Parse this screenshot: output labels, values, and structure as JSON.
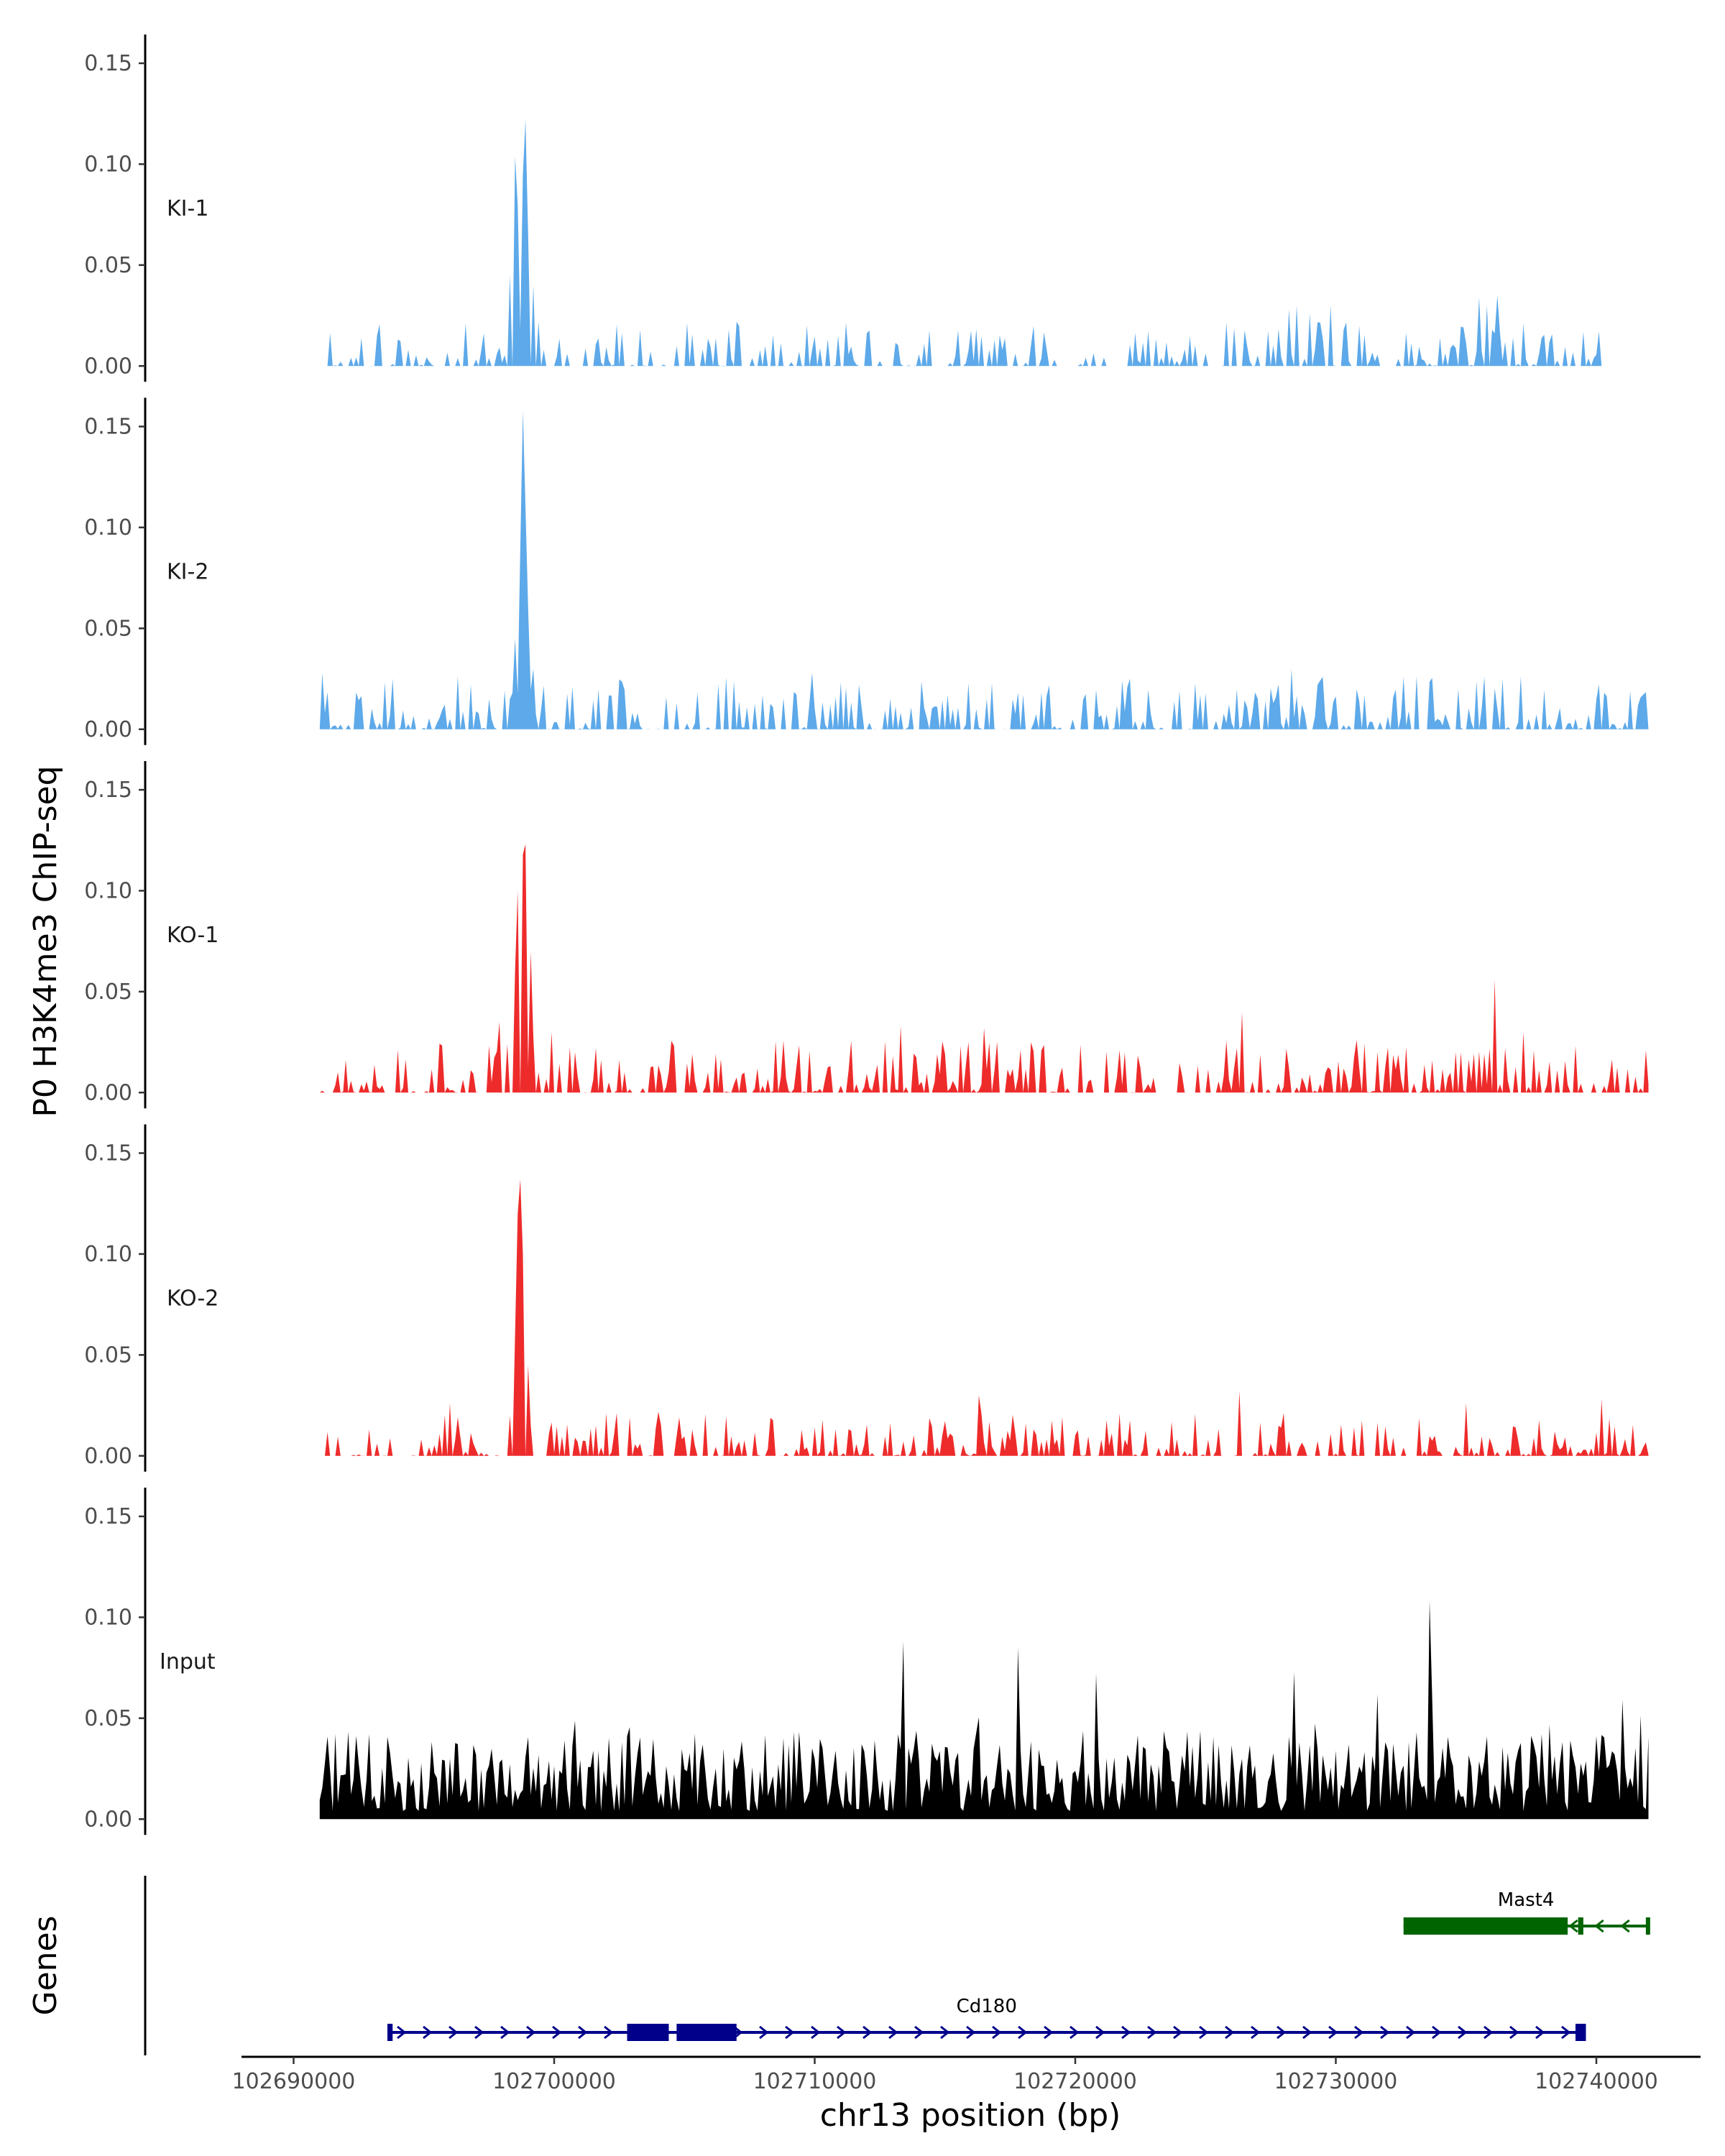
{
  "chart_data": {
    "type": "area",
    "title": "",
    "ylabel": "P0 H3K4me3 ChIP-seq",
    "xlabel": "chr13 position (bp)",
    "chromosome": "chr13",
    "xlim": [
      102688000,
      102744000
    ],
    "ylim": [
      0,
      0.16
    ],
    "y_ticks": [
      0.0,
      0.05,
      0.1,
      0.15
    ],
    "y_tick_labels": [
      "0.00",
      "0.05",
      "0.10",
      "0.15"
    ],
    "x_ticks": [
      102690000,
      102700000,
      102710000,
      102720000,
      102730000,
      102740000
    ],
    "x_tick_labels": [
      "102690000",
      "102700000",
      "102710000",
      "102720000",
      "102730000",
      "102740000"
    ],
    "grid": false,
    "track_range": [
      102691000,
      102742000
    ],
    "tracks": [
      {
        "name": "KI-1",
        "color": "#5DA9E9",
        "sparsity": 0.55,
        "spread": 0.01,
        "seed": 11,
        "region": [
          102691000,
          102740800
        ],
        "peaks": [
          [
            102698200,
            0.0
          ],
          [
            102698300,
            0.045
          ],
          [
            102698450,
            0.104
          ],
          [
            102698600,
            0.08
          ],
          [
            102698750,
            0.095
          ],
          [
            102698880,
            0.122
          ],
          [
            102699000,
            0.065
          ],
          [
            102699150,
            0.04
          ],
          [
            102699350,
            0.022
          ],
          [
            102699600,
            0.008
          ],
          [
            102699750,
            0.0
          ],
          [
            102728200,
            0.028
          ],
          [
            102728500,
            0.03
          ],
          [
            102729000,
            0.026
          ],
          [
            102729800,
            0.03
          ],
          [
            102730900,
            0.02
          ],
          [
            102735300,
            0.0
          ],
          [
            102735500,
            0.034
          ],
          [
            102735750,
            0.03
          ],
          [
            102736000,
            0.018
          ],
          [
            102736200,
            0.035
          ],
          [
            102736500,
            0.012
          ],
          [
            102736700,
            0.0
          ]
        ]
      },
      {
        "name": "KI-2",
        "color": "#5DA9E9",
        "sparsity": 0.42,
        "spread": 0.012,
        "seed": 23,
        "region": [
          102691000,
          102742000
        ],
        "peaks": [
          [
            102698150,
            0.0
          ],
          [
            102698350,
            0.018
          ],
          [
            102698500,
            0.045
          ],
          [
            102698650,
            0.09
          ],
          [
            102698750,
            0.158
          ],
          [
            102698850,
            0.11
          ],
          [
            102699000,
            0.06
          ],
          [
            102699200,
            0.03
          ],
          [
            102699450,
            0.01
          ],
          [
            102699650,
            0.0
          ],
          [
            102691100,
            0.028
          ],
          [
            102704300,
            0.016
          ],
          [
            102709900,
            0.028
          ],
          [
            102728300,
            0.03
          ],
          [
            102729300,
            0.022
          ],
          [
            102734700,
            0.02
          ]
        ]
      },
      {
        "name": "KO-1",
        "color": "#EE2B2B",
        "sparsity": 0.45,
        "spread": 0.012,
        "seed": 37,
        "region": [
          102691000,
          102742000
        ],
        "peaks": [
          [
            102697900,
            0.035
          ],
          [
            102698300,
            0.0
          ],
          [
            102698450,
            0.06
          ],
          [
            102698600,
            0.1
          ],
          [
            102698750,
            0.118
          ],
          [
            102698900,
            0.123
          ],
          [
            102699050,
            0.07
          ],
          [
            102699200,
            0.028
          ],
          [
            102699400,
            0.01
          ],
          [
            102699550,
            0.0
          ],
          [
            102699900,
            0.03
          ],
          [
            102713300,
            0.033
          ],
          [
            102716500,
            0.032
          ],
          [
            102726400,
            0.04
          ],
          [
            102736100,
            0.056
          ],
          [
            102737200,
            0.03
          ]
        ]
      },
      {
        "name": "KO-2",
        "color": "#EE2B2B",
        "sparsity": 0.45,
        "spread": 0.01,
        "seed": 53,
        "region": [
          102691000,
          102742000
        ],
        "peaks": [
          [
            102698150,
            0.0
          ],
          [
            102698300,
            0.02
          ],
          [
            102698450,
            0.06
          ],
          [
            102698600,
            0.12
          ],
          [
            102698680,
            0.137
          ],
          [
            102698800,
            0.1
          ],
          [
            102698950,
            0.045
          ],
          [
            102699100,
            0.015
          ],
          [
            102699250,
            0.0
          ],
          [
            102696000,
            0.026
          ],
          [
            102716300,
            0.03
          ],
          [
            102726300,
            0.032
          ],
          [
            102735000,
            0.026
          ],
          [
            102740200,
            0.028
          ]
        ]
      },
      {
        "name": "Input",
        "color": "#000000",
        "sparsity": 0.0,
        "spread": 0.04,
        "seed": 71,
        "region": [
          102691000,
          102742000
        ],
        "peaks": [
          [
            102713400,
            0.088
          ],
          [
            102717800,
            0.085
          ],
          [
            102733550,
            0.108
          ],
          [
            102733700,
            0.06
          ],
          [
            102720800,
            0.072
          ],
          [
            102728400,
            0.073
          ],
          [
            102731600,
            0.062
          ]
        ]
      }
    ],
    "genes_panel_label": "Genes",
    "genes": [
      {
        "name": "Cd180",
        "strand": "+",
        "start": 102693600,
        "end": 102739600,
        "color": "#00008B",
        "exons": [
          [
            102693600,
            102693800
          ],
          [
            102702800,
            102704400
          ],
          [
            102704700,
            102707000
          ],
          [
            102739200,
            102739600
          ]
        ]
      },
      {
        "name": "Mast4",
        "strand": "-",
        "start": 102732600,
        "end": 102742000,
        "color": "#006400",
        "exons": [
          [
            102732600,
            102738900
          ],
          [
            102739300,
            102739500
          ],
          [
            102741900,
            102742000
          ]
        ]
      }
    ]
  }
}
